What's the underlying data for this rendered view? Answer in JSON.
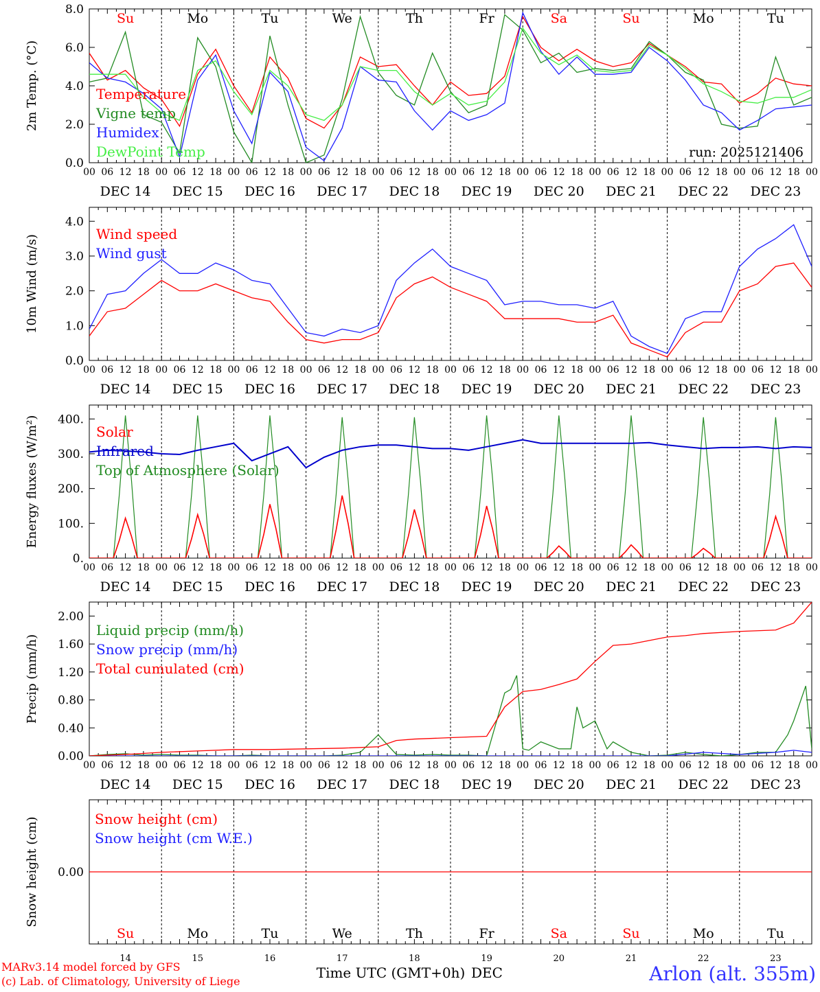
{
  "run_label": "run: 2025121406",
  "location": "Arlon (alt. 355m)",
  "footer": {
    "credit1": "MARv3.14 model forced by GFS",
    "credit2": "(c) Lab. of Climatology, University of Liege",
    "xlabel": "Time UTC (GMT+0h)",
    "month": "DEC"
  },
  "days": [
    {
      "abbr": "Su",
      "date": "DEC 14",
      "num": "14",
      "weekend": true
    },
    {
      "abbr": "Mo",
      "date": "DEC 15",
      "num": "15",
      "weekend": false
    },
    {
      "abbr": "Tu",
      "date": "DEC 16",
      "num": "16",
      "weekend": false
    },
    {
      "abbr": "We",
      "date": "DEC 17",
      "num": "17",
      "weekend": false
    },
    {
      "abbr": "Th",
      "date": "DEC 18",
      "num": "18",
      "weekend": false
    },
    {
      "abbr": "Fr",
      "date": "DEC 19",
      "num": "19",
      "weekend": false
    },
    {
      "abbr": "Sa",
      "date": "DEC 20",
      "num": "20",
      "weekend": true
    },
    {
      "abbr": "Su",
      "date": "DEC 21",
      "num": "21",
      "weekend": true
    },
    {
      "abbr": "Mo",
      "date": "DEC 22",
      "num": "22",
      "weekend": false
    },
    {
      "abbr": "Tu",
      "date": "DEC 23",
      "num": "23",
      "weekend": false
    }
  ],
  "hour_ticks": [
    "00",
    "06",
    "12",
    "18"
  ],
  "end_tick": "00",
  "colors": {
    "red": "#ff0000",
    "darkgreen": "#228b22",
    "blue": "#1f1fff",
    "lightgreen": "#44ee44",
    "navy": "#0000cc",
    "location": "#3333ff"
  },
  "chart_data": [
    {
      "id": "temp",
      "type": "line",
      "ylabel": "2m Temp. (°C)",
      "ylim": [
        0,
        8
      ],
      "yticks": [
        0,
        2,
        4,
        6,
        8
      ],
      "ytick_labels": [
        "0.0",
        "2.0",
        "4.0",
        "6.0",
        "8.0"
      ],
      "x_unit": "hours since DEC 14 00 UTC",
      "series": [
        {
          "name": "Temperature",
          "color": "#ff0000",
          "x": [
            0,
            6,
            12,
            18,
            24,
            30,
            36,
            42,
            48,
            54,
            60,
            66,
            72,
            78,
            84,
            90,
            96,
            102,
            108,
            114,
            120,
            126,
            132,
            138,
            144,
            150,
            156,
            162,
            168,
            174,
            180,
            186,
            192,
            198,
            204,
            210,
            216,
            222,
            228,
            234,
            240
          ],
          "y": [
            5.7,
            4.3,
            4.8,
            3.9,
            3.3,
            1.9,
            4.6,
            5.9,
            4.0,
            2.6,
            5.5,
            4.4,
            2.3,
            1.8,
            3.0,
            5.5,
            5.0,
            5.1,
            4.0,
            3.0,
            4.2,
            3.5,
            3.6,
            4.5,
            7.6,
            6.0,
            5.3,
            5.9,
            5.3,
            5.0,
            5.2,
            6.2,
            5.6,
            5.0,
            4.2,
            4.1,
            3.1,
            3.6,
            4.4,
            4.1,
            4.0
          ]
        },
        {
          "name": "Vigne temp",
          "color": "#228b22",
          "x": [
            0,
            6,
            12,
            18,
            24,
            30,
            36,
            42,
            48,
            54,
            60,
            66,
            72,
            78,
            84,
            90,
            96,
            102,
            108,
            114,
            120,
            126,
            132,
            138,
            144,
            150,
            156,
            162,
            168,
            174,
            180,
            186,
            192,
            198,
            204,
            210,
            216,
            222,
            228,
            234,
            240
          ],
          "y": [
            4.2,
            4.4,
            6.8,
            2.5,
            2.1,
            0.5,
            6.5,
            5.0,
            1.6,
            0.0,
            6.6,
            3.0,
            0.0,
            0.4,
            3.3,
            7.6,
            4.7,
            3.5,
            3.0,
            5.7,
            3.7,
            2.6,
            3.0,
            7.7,
            6.9,
            5.2,
            5.7,
            4.7,
            4.9,
            4.8,
            4.9,
            6.3,
            5.6,
            4.7,
            4.3,
            2.0,
            1.8,
            1.9,
            5.5,
            3.0,
            3.4
          ]
        },
        {
          "name": "Humidex",
          "color": "#1f1fff",
          "x": [
            0,
            6,
            12,
            18,
            24,
            30,
            36,
            42,
            48,
            54,
            60,
            66,
            72,
            78,
            84,
            90,
            96,
            102,
            108,
            114,
            120,
            126,
            132,
            138,
            144,
            150,
            156,
            162,
            168,
            174,
            180,
            186,
            192,
            198,
            204,
            210,
            216,
            222,
            228,
            234,
            240
          ],
          "y": [
            5.2,
            4.4,
            4.2,
            3.6,
            2.8,
            0.3,
            4.3,
            5.6,
            2.7,
            1.0,
            4.7,
            3.7,
            0.8,
            0.1,
            1.8,
            5.0,
            4.3,
            4.2,
            2.7,
            1.7,
            2.7,
            2.2,
            2.5,
            3.1,
            7.8,
            5.8,
            4.6,
            5.5,
            4.6,
            4.6,
            4.7,
            6.0,
            5.3,
            4.3,
            3.0,
            2.6,
            1.7,
            2.2,
            2.8,
            2.9,
            3.0
          ]
        },
        {
          "name": "DewPoint Temp",
          "color": "#44ee44",
          "x": [
            0,
            6,
            12,
            18,
            24,
            30,
            36,
            42,
            48,
            54,
            60,
            66,
            72,
            78,
            84,
            90,
            96,
            102,
            108,
            114,
            120,
            126,
            132,
            138,
            144,
            150,
            156,
            162,
            168,
            174,
            180,
            186,
            192,
            198,
            204,
            210,
            216,
            222,
            228,
            234,
            240
          ],
          "y": [
            4.6,
            4.6,
            4.6,
            3.4,
            2.6,
            2.2,
            4.8,
            5.3,
            3.7,
            2.5,
            4.8,
            4.0,
            2.5,
            2.2,
            3.0,
            5.0,
            4.8,
            4.8,
            3.7,
            3.0,
            3.6,
            3.0,
            3.2,
            4.2,
            7.0,
            5.7,
            5.1,
            5.6,
            4.8,
            4.7,
            4.8,
            6.1,
            5.6,
            4.9,
            4.1,
            3.7,
            3.2,
            3.1,
            3.4,
            3.4,
            3.8
          ]
        }
      ],
      "legend": [
        "Temperature",
        "Vigne temp",
        "Humidex",
        "DewPoint Temp"
      ]
    },
    {
      "id": "wind",
      "type": "line",
      "ylabel": "10m Wind (m/s)",
      "ylim": [
        0,
        4.4
      ],
      "yticks": [
        0,
        1,
        2,
        3,
        4
      ],
      "ytick_labels": [
        "0.0",
        "1.0",
        "2.0",
        "3.0",
        "4.0"
      ],
      "x_unit": "hours since DEC 14 00 UTC",
      "series": [
        {
          "name": "Wind speed",
          "color": "#ff0000",
          "x": [
            0,
            6,
            12,
            18,
            24,
            30,
            36,
            42,
            48,
            54,
            60,
            66,
            72,
            78,
            84,
            90,
            96,
            102,
            108,
            114,
            120,
            126,
            132,
            138,
            144,
            150,
            156,
            162,
            168,
            174,
            180,
            186,
            192,
            198,
            204,
            210,
            216,
            222,
            228,
            234,
            240
          ],
          "y": [
            0.7,
            1.4,
            1.5,
            1.9,
            2.3,
            2.0,
            2.0,
            2.2,
            2.0,
            1.8,
            1.7,
            1.1,
            0.6,
            0.5,
            0.6,
            0.6,
            0.8,
            1.8,
            2.2,
            2.4,
            2.1,
            1.9,
            1.7,
            1.2,
            1.2,
            1.2,
            1.2,
            1.1,
            1.1,
            1.3,
            0.5,
            0.3,
            0.1,
            0.8,
            1.1,
            1.1,
            2.0,
            2.2,
            2.7,
            2.8,
            2.1
          ]
        },
        {
          "name": "Wind gust",
          "color": "#1f1fff",
          "x": [
            0,
            6,
            12,
            18,
            24,
            30,
            36,
            42,
            48,
            54,
            60,
            66,
            72,
            78,
            84,
            90,
            96,
            102,
            108,
            114,
            120,
            126,
            132,
            138,
            144,
            150,
            156,
            162,
            168,
            174,
            180,
            186,
            192,
            198,
            204,
            210,
            216,
            222,
            228,
            234,
            240
          ],
          "y": [
            0.9,
            1.9,
            2.0,
            2.5,
            2.9,
            2.5,
            2.5,
            2.8,
            2.6,
            2.3,
            2.2,
            1.5,
            0.8,
            0.7,
            0.9,
            0.8,
            1.0,
            2.3,
            2.8,
            3.2,
            2.7,
            2.5,
            2.3,
            1.6,
            1.7,
            1.7,
            1.6,
            1.6,
            1.5,
            1.7,
            0.7,
            0.4,
            0.2,
            1.2,
            1.4,
            1.4,
            2.7,
            3.2,
            3.5,
            3.9,
            2.7
          ]
        }
      ],
      "legend": [
        "Wind speed",
        "Wind gust"
      ]
    },
    {
      "id": "energy",
      "type": "line",
      "ylabel": "Energy fluxes (W/m²)",
      "ylim": [
        0,
        440
      ],
      "yticks": [
        0,
        100,
        200,
        300,
        400
      ],
      "ytick_labels": [
        "0.",
        "100.",
        "200.",
        "300.",
        "400."
      ],
      "x_unit": "hours since DEC 14 00 UTC",
      "series": [
        {
          "name": "Infrared",
          "color": "#0000cc",
          "x": [
            0,
            6,
            12,
            18,
            24,
            30,
            36,
            42,
            48,
            54,
            60,
            66,
            72,
            78,
            84,
            90,
            96,
            102,
            108,
            114,
            120,
            126,
            132,
            138,
            144,
            150,
            156,
            162,
            168,
            174,
            180,
            186,
            192,
            198,
            204,
            210,
            216,
            222,
            228,
            234,
            240
          ],
          "y": [
            305,
            310,
            308,
            305,
            300,
            298,
            310,
            320,
            330,
            280,
            300,
            320,
            260,
            290,
            310,
            320,
            325,
            325,
            320,
            315,
            315,
            310,
            320,
            330,
            340,
            330,
            330,
            330,
            330,
            330,
            330,
            332,
            325,
            320,
            315,
            318,
            318,
            320,
            315,
            320,
            318
          ]
        }
      ],
      "peaks": {
        "note": "Solar and Top of Atmosphere (Solar) daily peaks, watts per m²",
        "toa_solar": [
          410,
          410,
          410,
          405,
          405,
          410,
          410,
          410,
          405,
          405
        ],
        "solar": [
          115,
          125,
          155,
          180,
          140,
          150,
          35,
          38,
          28,
          120
        ]
      },
      "legend": [
        "Solar",
        "Infrared",
        "Top of Atmosphere (Solar)"
      ]
    },
    {
      "id": "precip",
      "type": "line",
      "ylabel": "Precip (mm/h)",
      "ylim": [
        0,
        2.2
      ],
      "yticks": [
        0,
        0.4,
        0.8,
        1.2,
        1.6,
        2.0
      ],
      "ytick_labels": [
        "0.00",
        "0.40",
        "0.80",
        "1.20",
        "1.60",
        "2.00"
      ],
      "x_unit": "hours since DEC 14 00 UTC",
      "series": [
        {
          "name": "Liquid precip (mm/h)",
          "color": "#228b22",
          "x": [
            0,
            6,
            12,
            18,
            24,
            30,
            36,
            42,
            48,
            54,
            60,
            66,
            72,
            78,
            84,
            90,
            96,
            102,
            108,
            114,
            120,
            126,
            132,
            138,
            140,
            142,
            144,
            146,
            150,
            156,
            160,
            162,
            164,
            168,
            172,
            174,
            180,
            186,
            192,
            198,
            204,
            210,
            216,
            222,
            228,
            232,
            234,
            238,
            240
          ],
          "y": [
            0,
            0.02,
            0.03,
            0.01,
            0.02,
            0.01,
            0.01,
            0.0,
            0.0,
            0.01,
            0.0,
            0.0,
            0.0,
            0.0,
            0.01,
            0.05,
            0.3,
            0.02,
            0.01,
            0.02,
            0.01,
            0.01,
            0.0,
            0.9,
            0.95,
            1.15,
            0.1,
            0.08,
            0.2,
            0.1,
            0.1,
            0.7,
            0.4,
            0.5,
            0.1,
            0.2,
            0.05,
            0.0,
            0.01,
            0.05,
            0.02,
            0.0,
            0.02,
            0.05,
            0.05,
            0.3,
            0.5,
            1.0,
            0.1
          ]
        },
        {
          "name": "Snow precip (mm/h)",
          "color": "#1f1fff",
          "x": [
            0,
            24,
            48,
            72,
            96,
            120,
            144,
            168,
            192,
            204,
            216,
            228,
            234,
            240
          ],
          "y": [
            0,
            0,
            0,
            0,
            0,
            0,
            0,
            0,
            0,
            0.05,
            0.02,
            0.05,
            0.08,
            0.05
          ]
        },
        {
          "name": "Total cumulated (cm)",
          "color": "#ff0000",
          "x": [
            0,
            12,
            24,
            36,
            48,
            60,
            72,
            84,
            96,
            102,
            108,
            120,
            132,
            138,
            144,
            150,
            156,
            162,
            168,
            174,
            180,
            186,
            192,
            198,
            204,
            216,
            228,
            234,
            240
          ],
          "y": [
            0,
            0.02,
            0.05,
            0.07,
            0.09,
            0.09,
            0.1,
            0.11,
            0.13,
            0.22,
            0.24,
            0.26,
            0.28,
            0.7,
            0.92,
            0.95,
            1.02,
            1.1,
            1.35,
            1.58,
            1.6,
            1.65,
            1.7,
            1.72,
            1.75,
            1.78,
            1.8,
            1.9,
            2.2
          ]
        }
      ],
      "legend": [
        "Liquid precip (mm/h)",
        "Snow precip (mm/h)",
        "Total cumulated (cm)"
      ]
    },
    {
      "id": "snow",
      "type": "line",
      "ylabel": "Snow height (cm)",
      "ylim": [
        -1,
        1
      ],
      "yticks": [
        0
      ],
      "ytick_labels": [
        "0.00"
      ],
      "x_unit": "hours since DEC 14 00 UTC",
      "series": [
        {
          "name": "Snow height (cm)",
          "color": "#ff0000",
          "x": [
            0,
            240
          ],
          "y": [
            0,
            0
          ]
        }
      ],
      "legend": [
        "Snow height (cm)",
        "Snow height (cm W.E.)"
      ],
      "legend_colors": [
        "#ff0000",
        "#1f1fff"
      ]
    }
  ]
}
